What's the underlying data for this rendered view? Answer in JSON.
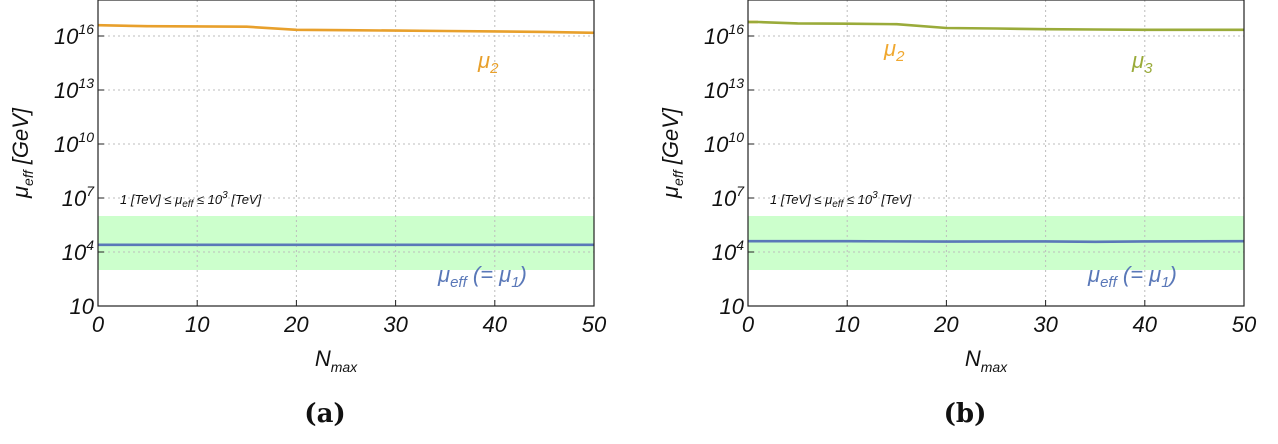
{
  "chart_data": [
    {
      "type": "line",
      "panel_label": "(a)",
      "xlabel": "N",
      "xlabel_sub": "max",
      "ylabel": "μ",
      "ylabel_sub": "eff",
      "ylabel_unit": "[GeV]",
      "y_scale": "log",
      "xlim": [
        0,
        50
      ],
      "ylim": [
        10,
        1e+18
      ],
      "x_ticks": [
        "0",
        "10",
        "20",
        "30",
        "40",
        "50"
      ],
      "y_ticks": [
        {
          "base": "10",
          "exp": ""
        },
        {
          "base": "10",
          "exp": "4"
        },
        {
          "base": "10",
          "exp": "7"
        },
        {
          "base": "10",
          "exp": "10"
        },
        {
          "base": "10",
          "exp": "13"
        },
        {
          "base": "10",
          "exp": "16"
        }
      ],
      "y_tick_values": [
        10,
        10000,
        10000000,
        10000000000,
        10000000000000,
        10000000000000000
      ],
      "grid": true,
      "band": {
        "range": [
          1000,
          1000000
        ],
        "color": "#ccffcc",
        "label": {
          "pre": "1 [TeV] ≤ μ",
          "sub1": "eff",
          "mid": " ≤ 10",
          "sup": "3",
          "post": " [TeV]"
        }
      },
      "series": [
        {
          "label": {
            "main": "μ",
            "sub": "2",
            "post": ""
          },
          "color": "#e8a02c",
          "x": [
            0,
            5,
            10,
            15,
            20,
            25,
            30,
            35,
            40,
            45,
            50
          ],
          "y": [
            4e+16,
            3.5e+16,
            3.4e+16,
            3.3e+16,
            2.2e+16,
            2.1e+16,
            2e+16,
            1.9e+16,
            1.8e+16,
            1.7e+16,
            1.5e+16
          ]
        },
        {
          "label": {
            "main": "μ",
            "sub": "eff",
            "post": " (= μ",
            "post_sub": "1",
            "close": ")"
          },
          "color": "#5a78b8",
          "x": [
            0,
            10,
            20,
            30,
            40,
            50
          ],
          "y": [
            25000,
            25000,
            25000,
            25000,
            25000,
            25000
          ]
        }
      ]
    },
    {
      "type": "line",
      "panel_label": "(b)",
      "xlabel": "N",
      "xlabel_sub": "max",
      "ylabel": "μ",
      "ylabel_sub": "eff",
      "ylabel_unit": "[GeV]",
      "y_scale": "log",
      "xlim": [
        0,
        50
      ],
      "ylim": [
        10,
        1e+18
      ],
      "x_ticks": [
        "0",
        "10",
        "20",
        "30",
        "40",
        "50"
      ],
      "y_ticks": [
        {
          "base": "10",
          "exp": ""
        },
        {
          "base": "10",
          "exp": "4"
        },
        {
          "base": "10",
          "exp": "7"
        },
        {
          "base": "10",
          "exp": "10"
        },
        {
          "base": "10",
          "exp": "13"
        },
        {
          "base": "10",
          "exp": "16"
        }
      ],
      "y_tick_values": [
        10,
        10000,
        10000000,
        10000000000,
        10000000000000,
        10000000000000000
      ],
      "grid": true,
      "band": {
        "range": [
          1000,
          1000000
        ],
        "color": "#ccffcc",
        "label": {
          "pre": "1 [TeV] ≤ μ",
          "sub1": "eff",
          "mid": " ≤ 10",
          "sup": "3",
          "post": " [TeV]"
        }
      },
      "series": [
        {
          "label": {
            "main": "μ",
            "sub": "2",
            "post": ""
          },
          "color": "#f0a830",
          "x": [
            0,
            1
          ],
          "y": [
            6e+16,
            6e+16
          ]
        },
        {
          "label": {
            "main": "μ",
            "sub": "3",
            "post": ""
          },
          "color": "#9aab3a",
          "x": [
            0,
            1,
            5,
            10,
            15,
            20,
            25,
            30,
            35,
            40,
            45,
            50
          ],
          "y": [
            6e+16,
            6e+16,
            5e+16,
            4.8e+16,
            4.5e+16,
            2.8e+16,
            2.6e+16,
            2.4e+16,
            2.3e+16,
            2.2e+16,
            2.2e+16,
            2.2e+16
          ]
        },
        {
          "label": {
            "main": "μ",
            "sub": "eff",
            "post": " (= μ",
            "post_sub": "1",
            "close": ")"
          },
          "color": "#5a78b8",
          "x": [
            0,
            10,
            20,
            30,
            35,
            40,
            50
          ],
          "y": [
            40000,
            40000,
            38000,
            39000,
            37000,
            39000,
            40000
          ]
        }
      ]
    }
  ]
}
